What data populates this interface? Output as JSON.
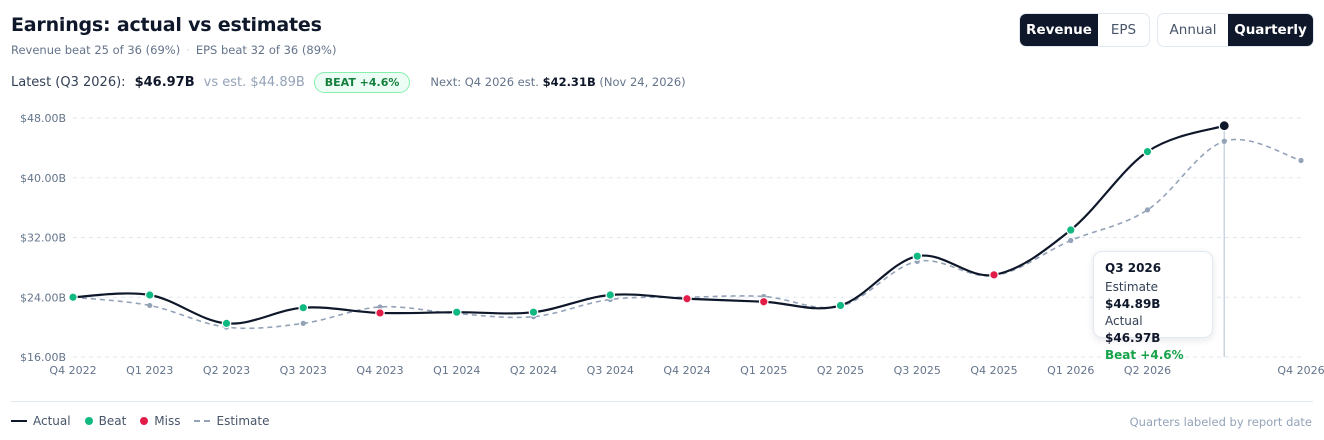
{
  "header": {
    "title": "Earnings: actual vs estimates",
    "summary_revenue": "Revenue beat 25 of 36 (69%)",
    "summary_separator": "·",
    "summary_eps": "EPS beat 32 of 36 (89%)"
  },
  "latest": {
    "label": "Latest (Q3 2026):",
    "value": "$46.97B",
    "estimate": "vs est. $44.89B",
    "badge": "BEAT +4.6%",
    "next_prefix": "Next: Q4 2026 est.",
    "next_value": "$42.31B",
    "next_date": "(Nov 24, 2026)"
  },
  "controls": {
    "metric_tabs": [
      {
        "label": "Revenue",
        "active": true
      },
      {
        "label": "EPS",
        "active": false
      }
    ],
    "period_tabs": [
      {
        "label": "Annual",
        "active": false
      },
      {
        "label": "Quarterly",
        "active": true
      }
    ]
  },
  "tooltip": {
    "title": "Q3 2026",
    "estimate_label": "Estimate",
    "estimate_value": "$44.89B",
    "actual_label": "Actual",
    "actual_value": "$46.97B",
    "result": "Beat +4.6%"
  },
  "legend": {
    "actual": "Actual",
    "beat": "Beat",
    "miss": "Miss",
    "estimate": "Estimate",
    "footnote": "Quarters labeled by report date"
  },
  "colors": {
    "actual": "#0f172a",
    "beat": "#10b981",
    "miss": "#e11d48",
    "estimate": "#94a3b8",
    "grid": "#e2e8f0"
  },
  "chart_data": {
    "type": "line",
    "title": "Earnings: actual vs estimates",
    "ylim": [
      16,
      48
    ],
    "yticks": [
      16,
      24,
      32,
      40,
      48
    ],
    "ytick_labels": [
      "$16.00B",
      "$24.00B",
      "$32.00B",
      "$40.00B",
      "$48.00B"
    ],
    "grid": true,
    "legend_position": "bottom",
    "categories": [
      "Q4 2022",
      "Q1 2023",
      "Q2 2023",
      "Q3 2023",
      "Q4 2023",
      "Q1 2024",
      "Q2 2024",
      "Q3 2024",
      "Q4 2024",
      "Q1 2025",
      "Q2 2025",
      "Q3 2025",
      "Q4 2025",
      "Q1 2026",
      "Q2 2026",
      "Q3 2026",
      "Q4 2026"
    ],
    "x_tick_labels": [
      "Q4 2022",
      "Q1 2023",
      "Q2 2023",
      "Q3 2023",
      "Q4 2023",
      "Q1 2024",
      "Q2 2024",
      "Q3 2024",
      "Q4 2024",
      "Q1 2025",
      "Q2 2025",
      "Q3 2025",
      "Q4 2025",
      "Q1 2026",
      "Q2 2026",
      "",
      "Q4 2026"
    ],
    "series": [
      {
        "name": "Actual",
        "values": [
          24.0,
          24.3,
          20.5,
          22.6,
          21.9,
          22.0,
          22.0,
          24.3,
          23.8,
          23.4,
          22.9,
          29.5,
          27.0,
          33.0,
          43.5,
          46.97,
          null
        ]
      },
      {
        "name": "Estimate",
        "values": [
          24.0,
          22.9,
          20.0,
          20.5,
          22.7,
          21.8,
          21.4,
          23.7,
          24.0,
          24.1,
          22.8,
          28.8,
          26.9,
          31.6,
          35.7,
          44.89,
          42.31
        ]
      }
    ],
    "results": [
      "beat",
      "beat",
      "beat",
      "beat",
      "miss",
      "beat",
      "beat",
      "beat",
      "miss",
      "miss",
      "beat",
      "beat",
      "miss",
      "beat",
      "beat",
      "latest",
      null
    ],
    "highlight_index": 15
  }
}
